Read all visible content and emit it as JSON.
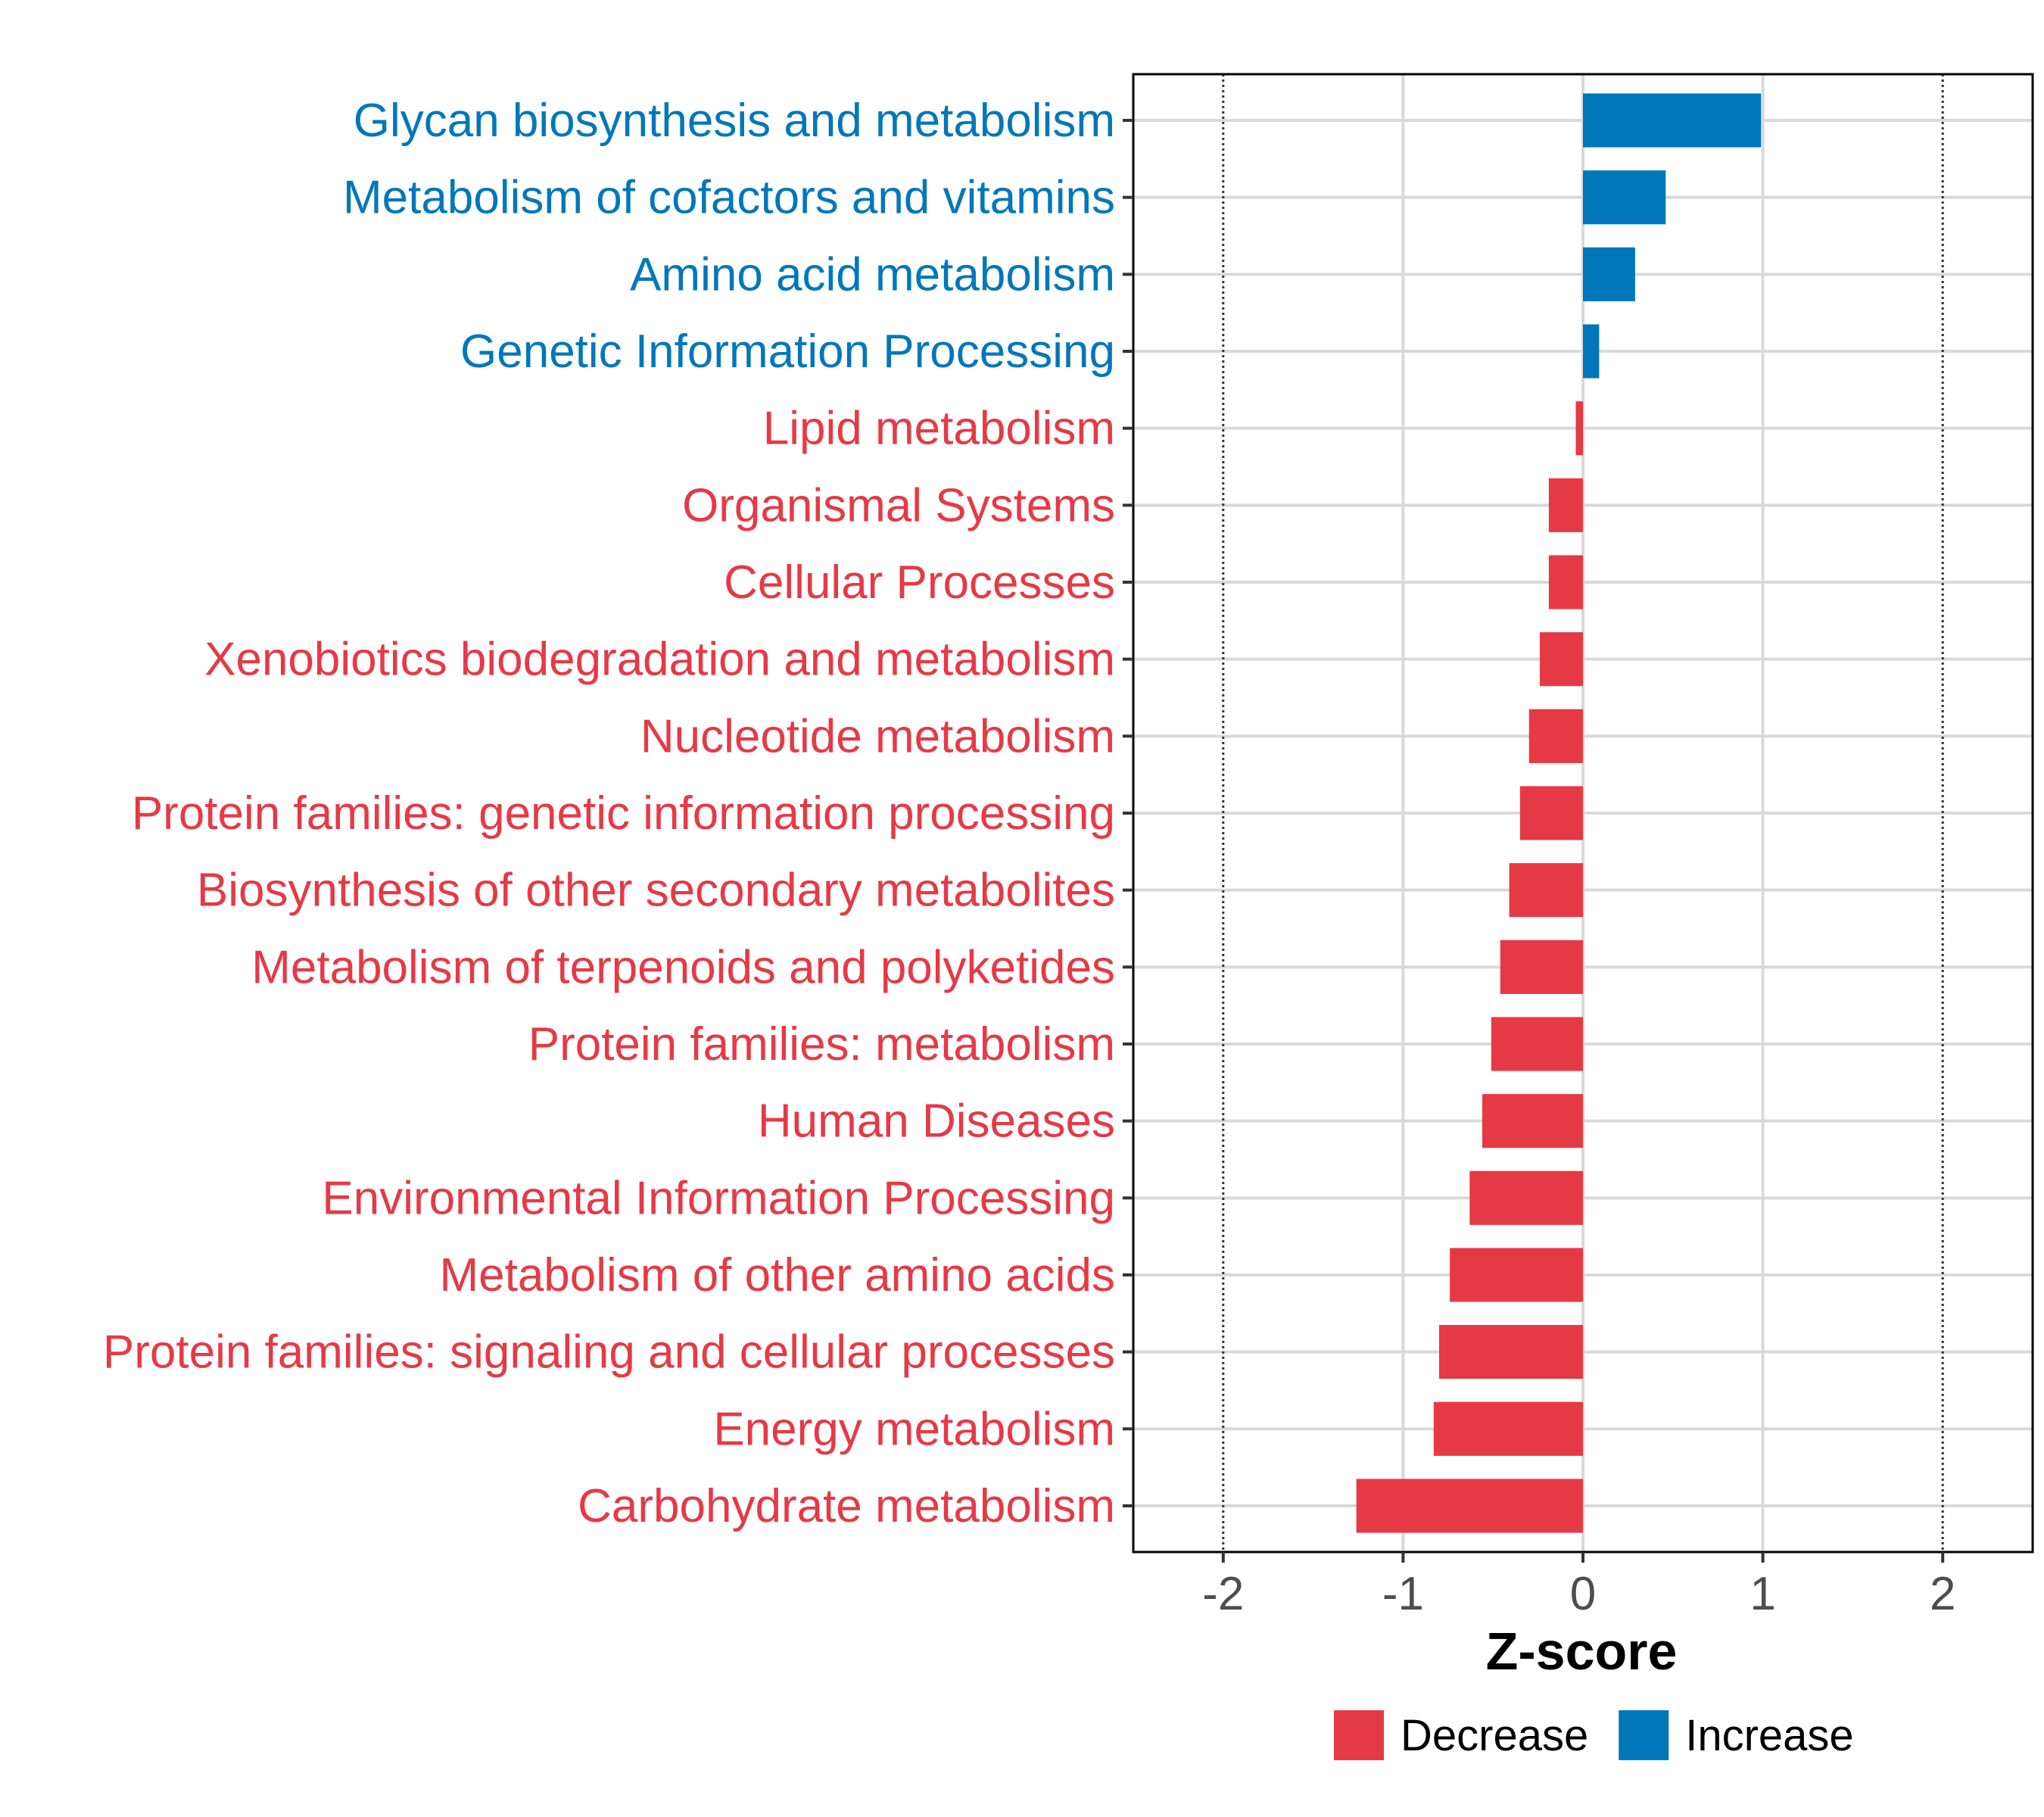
{
  "chart_data": {
    "type": "bar",
    "orientation": "horizontal",
    "xlabel": "Z-score",
    "ylabel": "",
    "xlim": [
      -2.5,
      2.5
    ],
    "xticks": [
      -2,
      -1,
      0,
      1,
      2
    ],
    "xtick_labels": [
      "-2",
      "-1",
      "0",
      "1",
      "2"
    ],
    "reference_lines": [
      -2,
      2
    ],
    "grid": true,
    "legend_position": "bottom",
    "categories": [
      "Glycan biosynthesis and metabolism",
      "Metabolism of cofactors and vitamins",
      "Amino acid metabolism",
      "Genetic Information Processing",
      "Lipid metabolism",
      "Organismal Systems",
      "Cellular Processes",
      "Xenobiotics biodegradation and metabolism",
      "Nucleotide metabolism",
      "Protein families: genetic information processing",
      "Biosynthesis of other secondary metabolites",
      "Metabolism of terpenoids and polyketides",
      "Protein families: metabolism",
      "Human Diseases",
      "Environmental Information Processing",
      "Metabolism of other amino acids",
      "Protein families: signaling and cellular processes",
      "Energy metabolism",
      "Carbohydrate metabolism"
    ],
    "values": [
      0.99,
      0.46,
      0.29,
      0.09,
      -0.04,
      -0.19,
      -0.19,
      -0.24,
      -0.3,
      -0.35,
      -0.41,
      -0.46,
      -0.51,
      -0.56,
      -0.63,
      -0.74,
      -0.8,
      -0.83,
      -1.26
    ],
    "groups": [
      "Increase",
      "Increase",
      "Increase",
      "Increase",
      "Decrease",
      "Decrease",
      "Decrease",
      "Decrease",
      "Decrease",
      "Decrease",
      "Decrease",
      "Decrease",
      "Decrease",
      "Decrease",
      "Decrease",
      "Decrease",
      "Decrease",
      "Decrease",
      "Decrease"
    ],
    "legend": [
      {
        "name": "Decrease",
        "color": "#E63946"
      },
      {
        "name": "Increase",
        "color": "#0077BB"
      }
    ]
  }
}
